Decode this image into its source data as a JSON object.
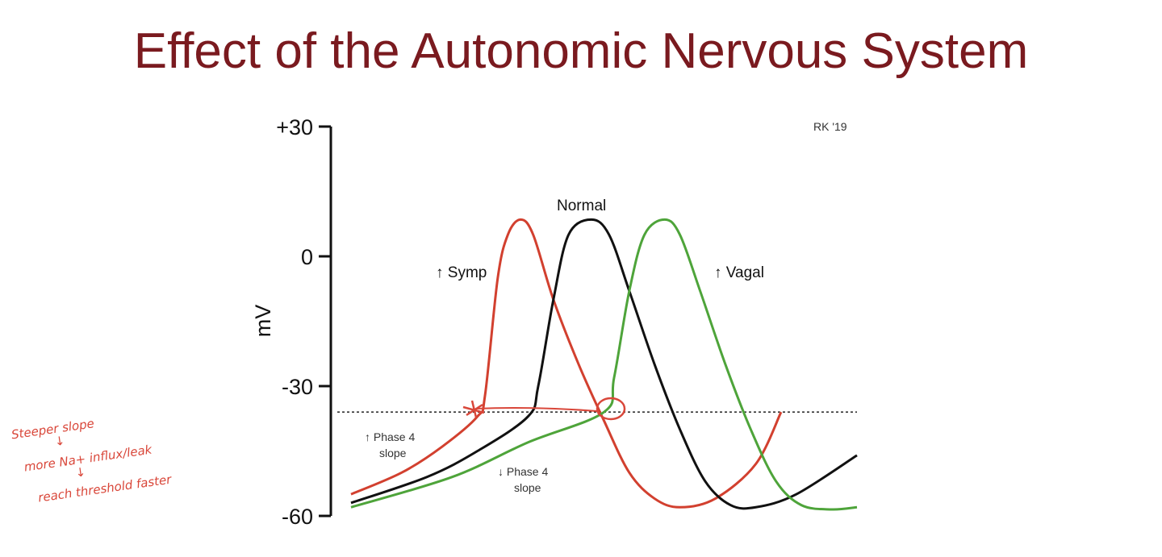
{
  "slide": {
    "title": "Effect of the Autonomic Nervous System",
    "credit": "RK '19"
  },
  "annotations": {
    "symp_slope": [
      "↑ Phase 4",
      "slope"
    ],
    "vagal_slope": [
      "↓ Phase 4",
      "slope"
    ],
    "handwritten": [
      "Steeper slope",
      "↓",
      "more Na+ influx/leak",
      "↓",
      "reach threshold faster"
    ]
  },
  "chart_data": {
    "type": "line",
    "title": "",
    "xlabel": "",
    "ylabel": "mV",
    "ylim": [
      -60,
      30
    ],
    "yticks": [
      "+30",
      "0",
      "-30",
      "-60"
    ],
    "ytick_values": [
      30,
      0,
      -30,
      -60
    ],
    "threshold_mV": -36,
    "grid": false,
    "series": [
      {
        "name": "↑ Symp",
        "color": "#d2402f",
        "points": [
          [
            0,
            -55
          ],
          [
            10,
            -50
          ],
          [
            18,
            -44
          ],
          [
            25,
            -37
          ],
          [
            26.5,
            -32
          ],
          [
            29,
            -5
          ],
          [
            31,
            5
          ],
          [
            33.5,
            8.5
          ],
          [
            36,
            5
          ],
          [
            40,
            -10
          ],
          [
            45,
            -25
          ],
          [
            50,
            -38
          ],
          [
            55,
            -50
          ],
          [
            60,
            -56
          ],
          [
            65,
            -58
          ],
          [
            72,
            -56
          ],
          [
            80,
            -48
          ],
          [
            85,
            -36
          ]
        ]
      },
      {
        "name": "Normal",
        "color": "#111111",
        "points": [
          [
            0,
            -57
          ],
          [
            15,
            -51
          ],
          [
            25,
            -45
          ],
          [
            35,
            -37
          ],
          [
            37,
            -30
          ],
          [
            40,
            -10
          ],
          [
            43,
            5
          ],
          [
            47.5,
            8.5
          ],
          [
            51,
            5
          ],
          [
            55,
            -8
          ],
          [
            60,
            -25
          ],
          [
            65,
            -40
          ],
          [
            70,
            -52
          ],
          [
            75,
            -57.5
          ],
          [
            80,
            -58
          ],
          [
            88,
            -55
          ],
          [
            100,
            -46
          ]
        ]
      },
      {
        "name": "↑ Vagal",
        "color": "#4ea43a",
        "points": [
          [
            0,
            -58
          ],
          [
            20,
            -51
          ],
          [
            35,
            -43
          ],
          [
            50,
            -36
          ],
          [
            52,
            -28
          ],
          [
            55,
            -8
          ],
          [
            58,
            5
          ],
          [
            62,
            8.5
          ],
          [
            65,
            5
          ],
          [
            69,
            -8
          ],
          [
            74,
            -25
          ],
          [
            79,
            -40
          ],
          [
            84,
            -52
          ],
          [
            89,
            -57.5
          ],
          [
            95,
            -58.5
          ],
          [
            100,
            -58
          ]
        ]
      }
    ]
  }
}
